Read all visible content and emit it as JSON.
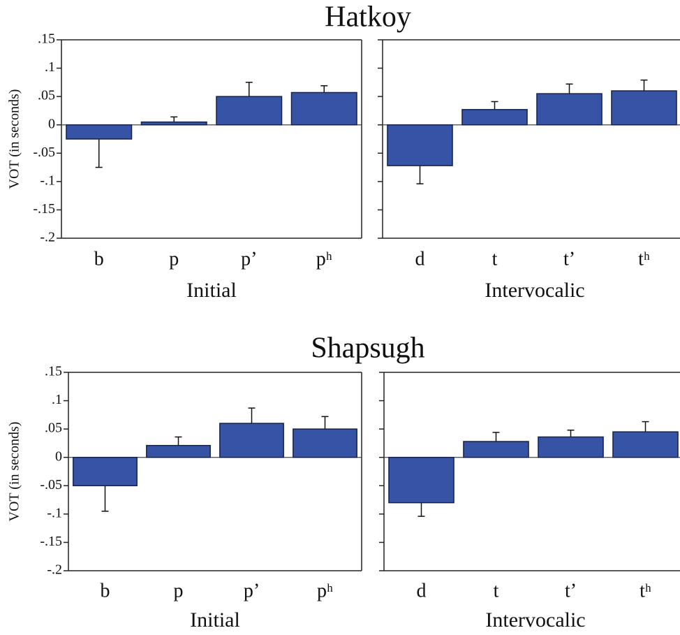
{
  "chart_data": [
    {
      "type": "bar",
      "title": "Hatkoy",
      "y_label": "VOT (in seconds)",
      "x_label": "Initial",
      "categories": [
        "b",
        "p",
        "p’",
        "pʰ"
      ],
      "values": [
        -0.025,
        0.005,
        0.05,
        0.057
      ],
      "errors": [
        0.05,
        0.009,
        0.025,
        0.012
      ],
      "color": "#3653a5",
      "ylim": [
        -0.2,
        0.15
      ],
      "yticks": [
        {
          "value": 0.15,
          "label": ".15"
        },
        {
          "value": 0.1,
          "label": ".1"
        },
        {
          "value": 0.05,
          "label": ".05"
        },
        0,
        {
          "value": -0.05,
          "label": "-.05"
        },
        {
          "value": -0.1,
          "label": "-.1"
        },
        {
          "value": -0.15,
          "label": "-.15"
        },
        {
          "value": -0.2,
          "label": "-.2"
        }
      ]
    },
    {
      "type": "bar",
      "x_label": "Intervocalic",
      "categories": [
        "d",
        "t",
        "t’",
        "tʰ"
      ],
      "values": [
        -0.072,
        0.027,
        0.055,
        0.06
      ],
      "errors": [
        0.032,
        0.014,
        0.017,
        0.019
      ],
      "color": "#3653a5",
      "ylim": [
        -0.2,
        0.15
      ],
      "yticks": [
        0.15,
        0.1,
        0.05,
        0,
        -0.05,
        -0.1,
        -0.15,
        -0.2
      ]
    },
    {
      "type": "bar",
      "title": "Shapsugh",
      "y_label": "VOT (in seconds)",
      "x_label": "Initial",
      "categories": [
        "b",
        "p",
        "p’",
        "pʰ"
      ],
      "values": [
        -0.05,
        0.021,
        0.06,
        0.05
      ],
      "errors": [
        0.045,
        0.015,
        0.027,
        0.022
      ],
      "color": "#3653a5",
      "ylim": [
        -0.2,
        0.15
      ],
      "yticks": [
        {
          "value": 0.15,
          "label": ".15"
        },
        {
          "value": 0.1,
          "label": ".1"
        },
        {
          "value": 0.05,
          "label": ".05"
        },
        0,
        {
          "value": -0.05,
          "label": "-.05"
        },
        {
          "value": -0.1,
          "label": "-.1"
        },
        {
          "value": -0.15,
          "label": "-.15"
        },
        {
          "value": -0.2,
          "label": "-.2"
        }
      ]
    },
    {
      "type": "bar",
      "x_label": "Intervocalic",
      "categories": [
        "d",
        "t",
        "t’",
        "tʰ"
      ],
      "values": [
        -0.08,
        0.028,
        0.036,
        0.045
      ],
      "errors": [
        0.024,
        0.016,
        0.012,
        0.018
      ],
      "color": "#3653a5",
      "ylim": [
        -0.2,
        0.15
      ],
      "yticks": [
        0.15,
        0.1,
        0.05,
        0,
        -0.05,
        -0.1,
        -0.15,
        -0.2
      ]
    }
  ]
}
